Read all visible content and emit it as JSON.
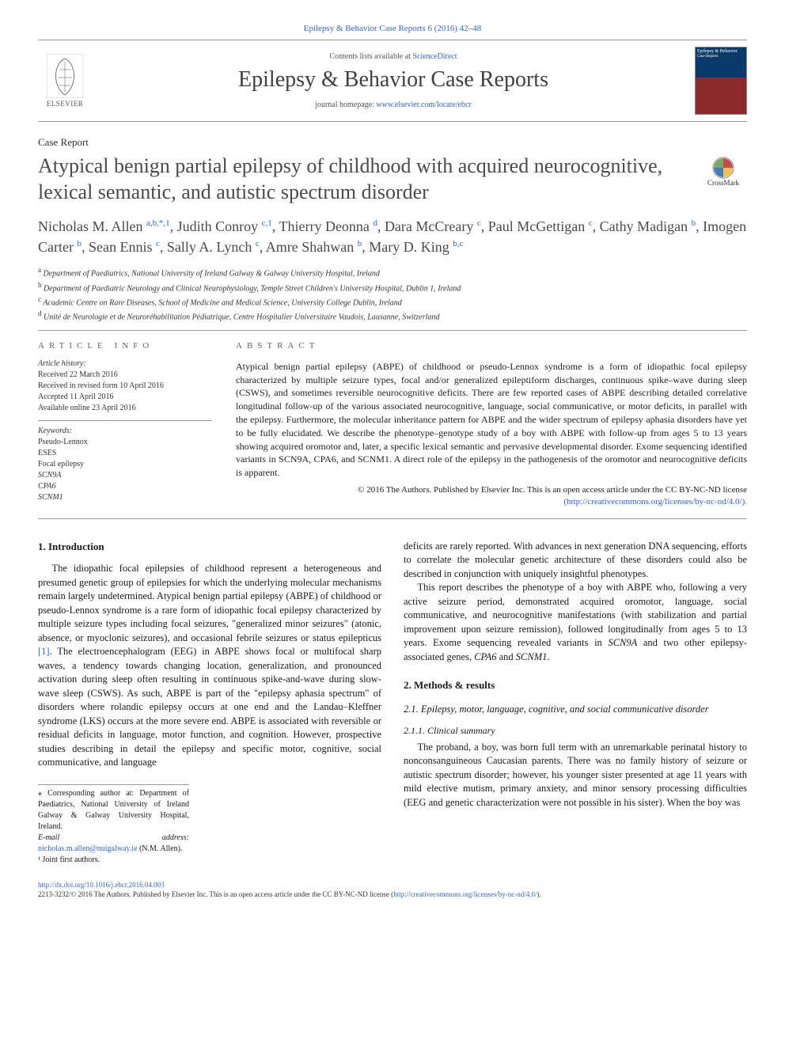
{
  "journal": {
    "citation_line": "Epilepsy & Behavior Case Reports 6 (2016) 42–48",
    "contents_prefix": "Contents lists available at ",
    "contents_link": "ScienceDirect",
    "name": "Epilepsy & Behavior Case Reports",
    "homepage_prefix": "journal homepage: ",
    "homepage_url": "www.elsevier.com/locate/ebcr",
    "publisher": "ELSEVIER",
    "cover_top": "Epilepsy & Behavior",
    "cover_sub": "Case Reports"
  },
  "article": {
    "type": "Case Report",
    "title": "Atypical benign partial epilepsy of childhood with acquired neurocognitive, lexical semantic, and autistic spectrum disorder",
    "crossmark": "CrossMark"
  },
  "authors": [
    {
      "name": "Nicholas M. Allen ",
      "aff": "a,b,*,1"
    },
    {
      "name": ", Judith Conroy ",
      "aff": "c,1"
    },
    {
      "name": ", Thierry Deonna ",
      "aff": "d"
    },
    {
      "name": ", Dara McCreary ",
      "aff": "c"
    },
    {
      "name": ", Paul McGettigan ",
      "aff": "c"
    },
    {
      "name": ", Cathy Madigan ",
      "aff": "b"
    },
    {
      "name": ", Imogen Carter ",
      "aff": "b"
    },
    {
      "name": ", Sean Ennis ",
      "aff": "c"
    },
    {
      "name": ", Sally A. Lynch ",
      "aff": "c"
    },
    {
      "name": ", Amre Shahwan ",
      "aff": "b"
    },
    {
      "name": ", Mary D. King ",
      "aff": "b,c"
    }
  ],
  "affiliations": [
    {
      "sup": "a",
      "text": " Department of Paediatrics, National University of Ireland Galway & Galway University Hospital, Ireland"
    },
    {
      "sup": "b",
      "text": " Department of Paediatric Neurology and Clinical Neurophysiology, Temple Street Children's University Hospital, Dublin 1, Ireland"
    },
    {
      "sup": "c",
      "text": " Academic Centre on Rare Diseases, School of Medicine and Medical Science, University College Dublin, Ireland"
    },
    {
      "sup": "d",
      "text": " Unité de Neurologie et de Neuroréhabilitation Pédiatrique, Centre Hospitalier Universitaire Vaudois, Lausanne, Switzerland"
    }
  ],
  "article_info": {
    "heading": "article info",
    "history_label": "Article history:",
    "received": "Received 22 March 2016",
    "revised": "Received in revised form 10 April 2016",
    "accepted": "Accepted 11 April 2016",
    "online": "Available online 23 April 2016",
    "keywords_label": "Keywords:",
    "keywords": [
      "Pseudo-Lennox",
      "ESES",
      "Focal epilepsy",
      "SCN9A",
      "CPA6",
      "SCNM1"
    ]
  },
  "abstract": {
    "heading": "abstract",
    "text": "Atypical benign partial epilepsy (ABPE) of childhood or pseudo-Lennox syndrome is a form of idiopathic focal epilepsy characterized by multiple seizure types, focal and/or generalized epileptiform discharges, continuous spike–wave during sleep (CSWS), and sometimes reversible neurocognitive deficits. There are few reported cases of ABPE describing detailed correlative longitudinal follow-up of the various associated neurocognitive, language, social communicative, or motor deficits, in parallel with the epilepsy. Furthermore, the molecular inheritance pattern for ABPE and the wider spectrum of epilepsy aphasia disorders have yet to be fully elucidated. We describe the phenotype–genotype study of a boy with ABPE with follow-up from ages 5 to 13 years showing acquired oromotor and, later, a specific lexical semantic and pervasive developmental disorder. Exome sequencing identified variants in SCN9A, CPA6, and SCNM1. A direct role of the epilepsy in the pathogenesis of the oromotor and neurocognitive deficits is apparent.",
    "copyright": "© 2016 The Authors. Published by Elsevier Inc. This is an open access article under the CC BY-NC-ND license",
    "license_url": "(http://creativecommons.org/licenses/by-nc-nd/4.0/)."
  },
  "sections": {
    "s1_title": "1. Introduction",
    "s1_p1": "The idiopathic focal epilepsies of childhood represent a heterogeneous and presumed genetic group of epilepsies for which the underlying molecular mechanisms remain largely undetermined. Atypical benign partial epilepsy (ABPE) of childhood or pseudo-Lennox syndrome is a rare form of idiopathic focal epilepsy characterized by multiple seizure types including focal seizures, \"generalized minor seizures\" (atonic, absence, or myoclonic seizures), and occasional febrile seizures or status epilepticus ",
    "s1_ref1": "[1]",
    "s1_p1b": ". The electroencephalogram (EEG) in ABPE shows focal or multifocal sharp waves, a tendency towards changing location, generalization, and pronounced activation during sleep often resulting in continuous spike-and-wave during slow-wave sleep (CSWS). As such, ABPE is part of the \"epilepsy aphasia spectrum\" of disorders where rolandic epilepsy occurs at one end and the Landau–Kleffner syndrome (LKS) occurs at the more severe end. ABPE is associated with reversible or residual deficits in language, motor function, and cognition. However, prospective studies describing in detail the epilepsy and specific motor, cognitive, social communicative, and language",
    "s1_p2": "deficits are rarely reported. With advances in next generation DNA sequencing, efforts to correlate the molecular genetic architecture of these disorders could also be described in conjunction with uniquely insightful phenotypes.",
    "s1_p3a": "This report describes the phenotype of a boy with ABPE who, following a very active seizure period, demonstrated acquired oromotor, language, social communicative, and neurocognitive manifestations (with stabilization and partial improvement upon seizure remission), followed longitudinally from ages 5 to 13 years. Exome sequencing revealed variants in ",
    "s1_g1": "SCN9A",
    "s1_p3b": " and two other epilepsy-associated genes, ",
    "s1_g2": "CPA6",
    "s1_p3c": " and ",
    "s1_g3": "SCNM1",
    "s1_p3d": ".",
    "s2_title": "2. Methods & results",
    "s21_title": "2.1. Epilepsy, motor, language, cognitive, and social communicative disorder",
    "s211_title": "2.1.1. Clinical summary",
    "s211_p1": "The proband, a boy, was born full term with an unremarkable perinatal history to nonconsanguineous Caucasian parents. There was no family history of seizure or autistic spectrum disorder; however, his younger sister presented at age 11 years with mild elective mutism, primary anxiety, and minor sensory processing difficulties (EEG and genetic characterization were not possible in his sister). When the boy was"
  },
  "footnotes": {
    "corr": "⁎  Corresponding author at: Department of Paediatrics, National University of Ireland Galway & Galway University Hospital, Ireland.",
    "email_label": "E-mail address: ",
    "email": "nicholas.m.allen@nuigalway.ie",
    "email_who": " (N.M. Allen).",
    "joint": "¹  Joint first authors."
  },
  "footer": {
    "doi": "http://dx.doi.org/10.1016/j.ebcr.2016.04.003",
    "issn_line": "2213-3232/© 2016 The Authors. Published by Elsevier Inc. This is an open access article under the CC BY-NC-ND license (",
    "license_url": "http://creativecommons.org/licenses/by-nc-nd/4.0/",
    "close": ")."
  },
  "colors": {
    "link": "#3366cc",
    "text": "#1a1a1a",
    "muted": "#666666",
    "rule": "#999999"
  }
}
